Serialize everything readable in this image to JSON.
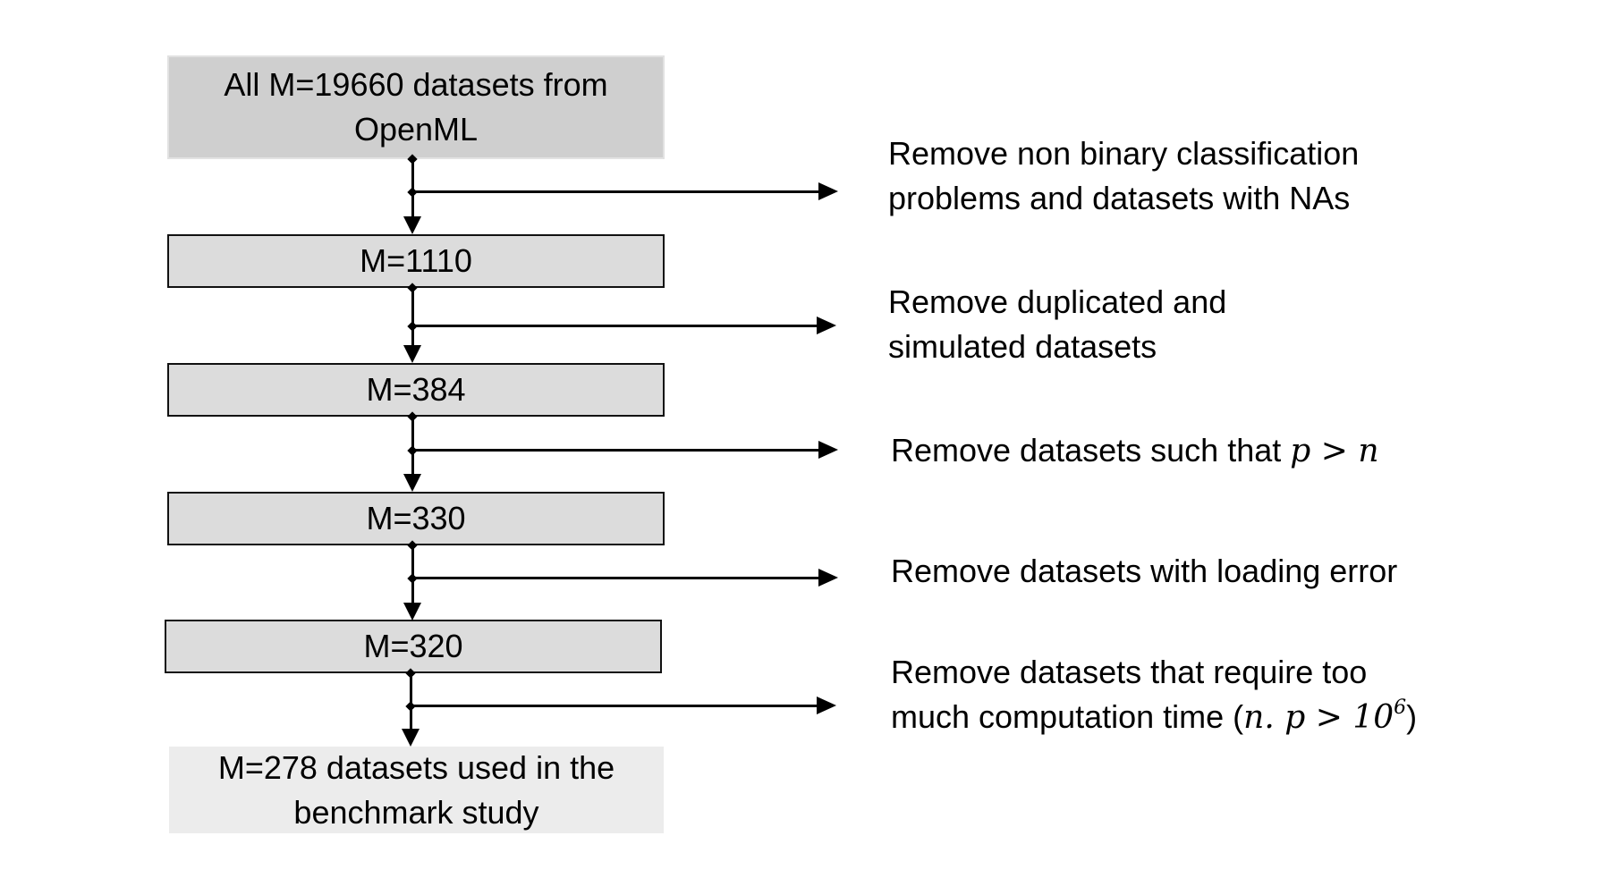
{
  "boxes": {
    "start_line1": "All M=19660 datasets from",
    "start_line2": "OpenML",
    "m1110": "M=1110",
    "m384": "M=384",
    "m330": "M=330",
    "m320": "M=320",
    "end_line1": "M=278 datasets used in the",
    "end_line2": "benchmark study"
  },
  "steps": {
    "step1_line1": "Remove non binary classification",
    "step1_line2": "problems and datasets with NAs",
    "step2_line1": "Remove duplicated and",
    "step2_line2": "simulated datasets",
    "step3_text": "Remove datasets such that ",
    "step3_math": "p > n",
    "step4_text": "Remove datasets with loading error",
    "step5_line1": "Remove datasets that require too",
    "step5_text": "much computation time (",
    "step5_math": "n. p > 10",
    "step5_exp": "6",
    "step5_close": ")"
  },
  "colors": {
    "start_box": "#cfcfcf",
    "mid_box": "#dcdcdc",
    "end_box": "#ececec",
    "lines": "#000000"
  }
}
